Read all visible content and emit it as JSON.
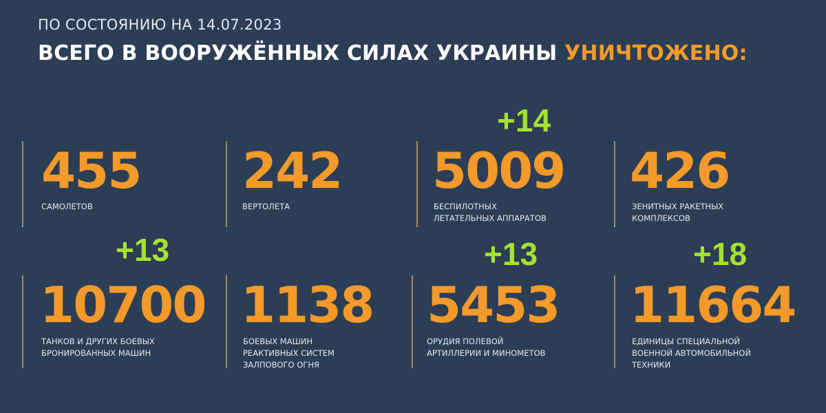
{
  "header": {
    "date_line": "ПО СОСТОЯНИЮ НА 14.07.2023",
    "title_main": "ВСЕГО В ВООРУЖЁННЫХ СИЛАХ УКРАИНЫ",
    "title_highlight": "УНИЧТОЖЕНО:"
  },
  "colors": {
    "background": "#2c3d56",
    "number": "#f39a2a",
    "delta": "#a6e22e",
    "divider": "#a08a68"
  },
  "stats": [
    {
      "value": "455",
      "label_lines": [
        "САМОЛЕТОВ"
      ],
      "delta": null
    },
    {
      "value": "242",
      "label_lines": [
        "ВЕРТОЛЕТА"
      ],
      "delta": null
    },
    {
      "value": "5009",
      "label_lines": [
        "БЕСПИЛОТНЫХ",
        "ЛЕТАТЕЛЬНЫХ АППАРАТОВ"
      ],
      "delta": "+14"
    },
    {
      "value": "426",
      "label_lines": [
        "ЗЕНИТНЫХ РАКЕТНЫХ",
        "КОМПЛЕКСОВ"
      ],
      "delta": null
    },
    {
      "value": "10700",
      "label_lines": [
        "ТАНКОВ И ДРУГИХ БОЕВЫХ",
        "БРОНИРОВАННЫХ МАШИН"
      ],
      "delta": "+13"
    },
    {
      "value": "1138",
      "label_lines": [
        "БОЕВЫХ МАШИН",
        "РЕАКТИВНЫХ СИСТЕМ",
        "ЗАЛПОВОГО ОГНЯ"
      ],
      "delta": null
    },
    {
      "value": "5453",
      "label_lines": [
        "ОРУДИЯ ПОЛЕВОЙ",
        "АРТИЛЛЕРИИ И МИНОМЕТОВ"
      ],
      "delta": "+13"
    },
    {
      "value": "11664",
      "label_lines": [
        "ЕДИНИЦЫ СПЕЦИАЛЬНОЙ",
        "ВОЕННОЙ АВТОМОБИЛЬНОЙ",
        "ТЕХНИКИ"
      ],
      "delta": "+18"
    }
  ]
}
